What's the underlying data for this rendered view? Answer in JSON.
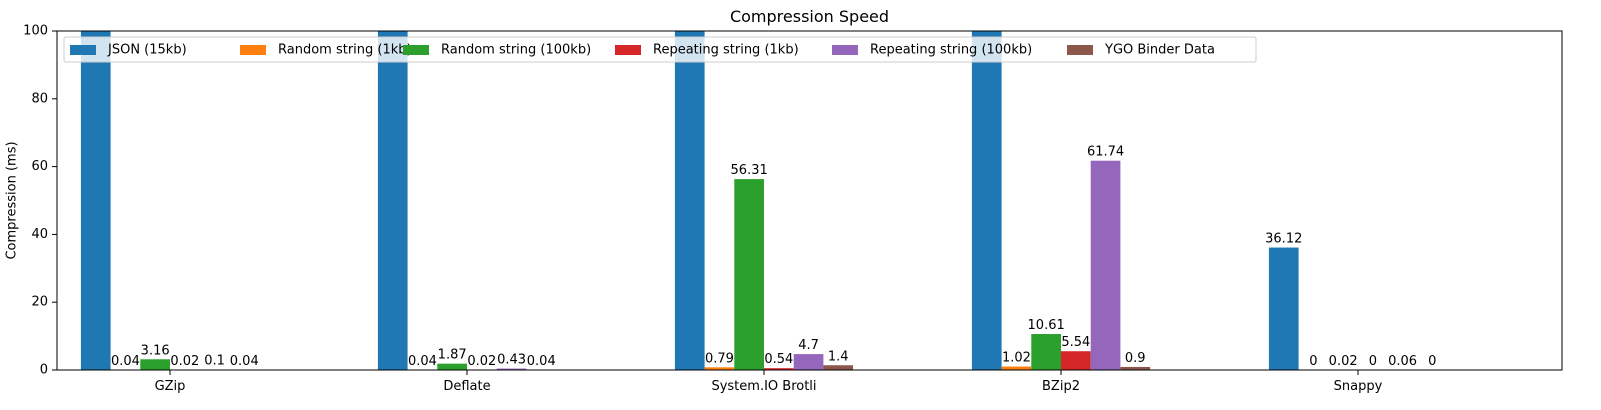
{
  "chart_data": {
    "type": "bar",
    "title": "Compression Speed",
    "ylabel": "Compression (ms)",
    "xlabel": "",
    "ylim": [
      0,
      100
    ],
    "yticks": [
      0,
      20,
      40,
      60,
      80,
      100
    ],
    "categories": [
      "GZip",
      "Deflate",
      "System.IO Brotli",
      "BZip2",
      "Snappy"
    ],
    "series": [
      {
        "name": "JSON (15kb)",
        "color": "#1f77b4",
        "values": [
          null,
          null,
          null,
          null,
          36.12
        ],
        "labels": [
          "",
          "",
          "",
          "",
          "36.12"
        ]
      },
      {
        "name": "Random string (1kb)",
        "color": "#ff7f0e",
        "values": [
          0.04,
          0.04,
          0.79,
          1.02,
          0
        ],
        "labels": [
          "0.04",
          "0.04",
          "0.79",
          "1.02",
          "0"
        ]
      },
      {
        "name": "Random string (100kb)",
        "color": "#2ca02c",
        "values": [
          3.16,
          1.87,
          56.31,
          10.61,
          0.02
        ],
        "labels": [
          "3.16",
          "1.87",
          "56.31",
          "10.61",
          "0.02"
        ]
      },
      {
        "name": "Repeating string (1kb)",
        "color": "#d62728",
        "values": [
          0.02,
          0.02,
          0.54,
          5.54,
          0
        ],
        "labels": [
          "0.02",
          "0.02",
          "0.54",
          "5.54",
          "0"
        ]
      },
      {
        "name": "Repeating string (100kb)",
        "color": "#9467bd",
        "values": [
          0.1,
          0.43,
          4.7,
          61.74,
          0.06
        ],
        "labels": [
          "0.1",
          "0.43",
          "4.7",
          "61.74",
          "0.06"
        ]
      },
      {
        "name": "YGO Binder Data",
        "color": "#8c564b",
        "values": [
          0.04,
          0.04,
          1.4,
          0.9,
          0
        ],
        "labels": [
          "0.04",
          "0.04",
          "1.4",
          "0.9",
          "0"
        ]
      }
    ],
    "legend_placement": "upper-left",
    "legend_columns": 6,
    "grid": false
  }
}
